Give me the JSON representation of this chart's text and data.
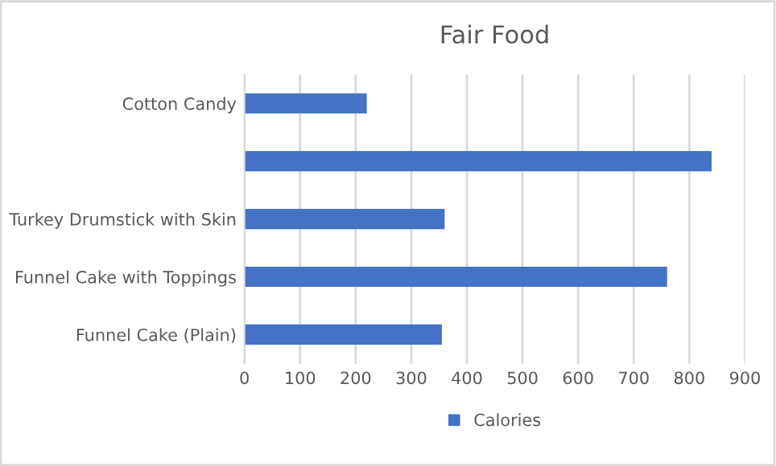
{
  "chart_data": {
    "type": "bar",
    "orientation": "horizontal",
    "title": "Fair Food",
    "categories": [
      "Cotton Candy",
      null,
      "Turkey Drumstick with Skin",
      "Funnel Cake with Toppings",
      "Funnel Cake (Plain)"
    ],
    "series": [
      {
        "name": "Calories",
        "color": "#4472c4",
        "values": [
          220,
          840,
          360,
          760,
          355
        ]
      }
    ],
    "xlim": [
      0,
      900
    ],
    "xticks": [
      0,
      100,
      200,
      300,
      400,
      500,
      600,
      700,
      800,
      900
    ],
    "grid": "x",
    "legend": "bottom"
  }
}
